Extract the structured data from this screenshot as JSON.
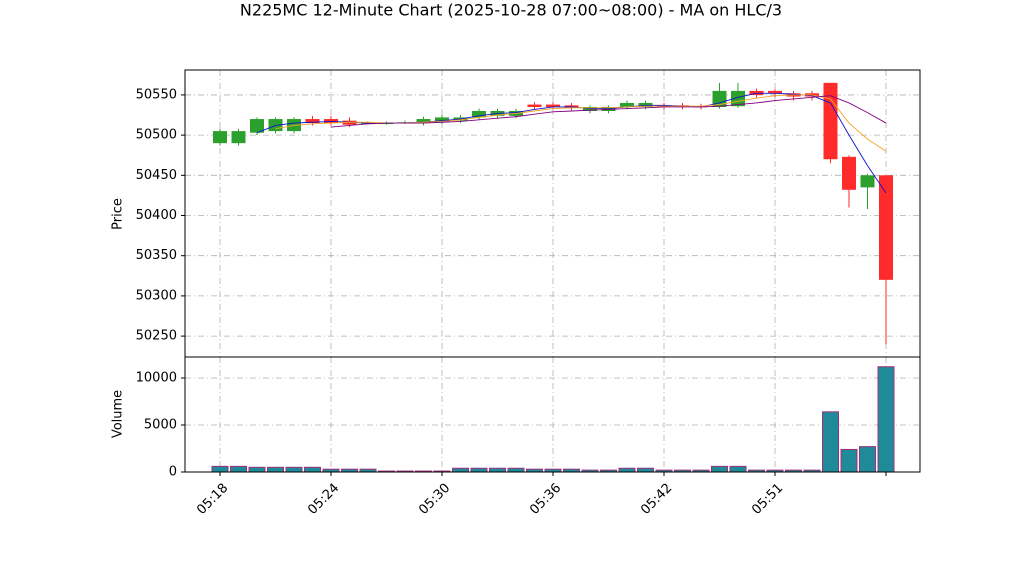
{
  "chart_data": {
    "type": "candlestick",
    "title": "N225MC 12-Minute Chart (2025-10-28 07:00~08:00) - MA on HLC/3",
    "ylabel": "Price",
    "categories": [
      "05:18",
      null,
      null,
      null,
      null,
      null,
      "05:24",
      null,
      null,
      null,
      null,
      null,
      "05:30",
      null,
      null,
      null,
      null,
      null,
      "05:36",
      null,
      null,
      null,
      null,
      null,
      "05:42",
      null,
      null,
      null,
      null,
      null,
      "05:51",
      null,
      null,
      null,
      null,
      null,
      null
    ],
    "open": [
      50490,
      50490,
      50503,
      50505,
      50505,
      50520,
      50520,
      50518,
      50515,
      50515,
      50516,
      50515,
      50517,
      50518,
      50522,
      50524,
      50524,
      50538,
      50538,
      50537,
      50530,
      50530,
      50535,
      50535,
      50537,
      50537,
      50536,
      50535,
      50536,
      50555,
      50555,
      50552,
      50552,
      50565,
      50473,
      50435,
      50450
    ],
    "high": [
      50508,
      50508,
      50522,
      50522,
      50522,
      50524,
      50524,
      50522,
      50517,
      50517,
      50518,
      50523,
      50525,
      50525,
      50533,
      50533,
      50533,
      50541,
      50541,
      50540,
      50537,
      50537,
      50543,
      50543,
      50540,
      50540,
      50539,
      50565,
      50565,
      50558,
      50557,
      50555,
      50555,
      50565,
      50475,
      50452,
      50450
    ],
    "low": [
      50487,
      50487,
      50500,
      50502,
      50502,
      50512,
      50512,
      50510,
      50513,
      50513,
      50514,
      50512,
      50514,
      50515,
      50519,
      50521,
      50521,
      50532,
      50532,
      50531,
      50527,
      50527,
      50532,
      50532,
      50532,
      50532,
      50532,
      50533,
      50534,
      50546,
      50547,
      50543,
      50543,
      50465,
      50410,
      50408,
      50240
    ],
    "close": [
      50505,
      50505,
      50520,
      50520,
      50520,
      50515,
      50515,
      50513,
      50515,
      50515,
      50516,
      50520,
      50522,
      50522,
      50530,
      50530,
      50530,
      50535,
      50535,
      50534,
      50535,
      50535,
      50540,
      50540,
      50535,
      50535,
      50535,
      50555,
      50555,
      50550,
      50552,
      50548,
      50548,
      50470,
      50432,
      50450,
      50320
    ],
    "up_color": "#2ca02c",
    "down_color": "#ff2a2a",
    "ylim": [
      50224,
      50581
    ],
    "yticks": [
      50250,
      50300,
      50350,
      50400,
      50450,
      50500,
      50550
    ],
    "grid": true,
    "ma_series": [
      {
        "color": "#1010d0",
        "values": [
          null,
          null,
          50503,
          50512,
          50515,
          50516,
          50517,
          50516,
          50515,
          50515,
          50515,
          50516,
          50518,
          50520,
          50524,
          50527,
          50528,
          50532,
          50535,
          50535,
          50533,
          50533,
          50535,
          50537,
          50537,
          50536,
          50535,
          50540,
          50547,
          50552,
          50552,
          50551,
          50549,
          50540,
          50500,
          50462,
          50428
        ]
      },
      {
        "color": "#f5a623",
        "values": [
          null,
          null,
          null,
          50508,
          50512,
          50514,
          50515,
          50516,
          50516,
          50515,
          50515,
          50516,
          50517,
          50519,
          50522,
          50525,
          50527,
          50530,
          50533,
          50534,
          50534,
          50534,
          50535,
          50536,
          50536,
          50536,
          50536,
          50538,
          50542,
          50546,
          50549,
          50550,
          50550,
          50545,
          50515,
          50495,
          50480
        ]
      },
      {
        "color": "#800080",
        "values": [
          null,
          null,
          null,
          null,
          null,
          null,
          50510,
          50512,
          50514,
          50515,
          50515,
          50515,
          50516,
          50517,
          50519,
          50521,
          50523,
          50526,
          50529,
          50530,
          50531,
          50532,
          50533,
          50534,
          50535,
          50535,
          50535,
          50536,
          50538,
          50540,
          50543,
          50545,
          50547,
          50549,
          50540,
          50528,
          50515
        ]
      }
    ],
    "volume": {
      "ylabel": "Volume",
      "color": "#1f8a9a",
      "edge_color": "#a0307a",
      "values": [
        600,
        600,
        500,
        500,
        500,
        500,
        300,
        300,
        300,
        100,
        100,
        100,
        100,
        400,
        400,
        400,
        400,
        300,
        300,
        300,
        200,
        200,
        400,
        400,
        200,
        200,
        200,
        600,
        600,
        200,
        200,
        200,
        200,
        6400,
        2400,
        2700,
        11200
      ],
      "ylim": [
        0,
        12234
      ],
      "yticks": [
        0,
        5000,
        10000
      ]
    }
  }
}
